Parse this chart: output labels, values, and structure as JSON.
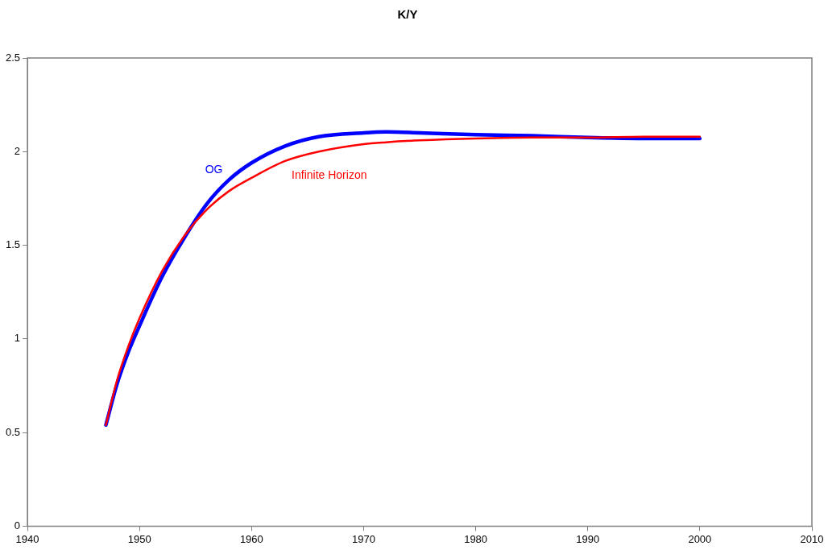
{
  "chart_data": {
    "type": "line",
    "title": "K/Y",
    "xlim": [
      1940,
      2010
    ],
    "xticks": [
      1940,
      1950,
      1960,
      1970,
      1980,
      1990,
      2000,
      2010
    ],
    "ylim": [
      0,
      2.5
    ],
    "yticks": [
      0,
      0.5,
      1,
      1.5,
      2,
      2.5
    ],
    "grid": false,
    "legend": false,
    "marker": "none",
    "line_style": "solid",
    "x": [
      1947,
      1948,
      1949,
      1950,
      1952,
      1954,
      1956,
      1958,
      1960,
      1963,
      1966,
      1970,
      1972,
      1975,
      1980,
      1985,
      1990,
      1995,
      2000
    ],
    "series": [
      {
        "name": "OG",
        "color": "#0000ff",
        "values": [
          0.54,
          0.76,
          0.93,
          1.07,
          1.33,
          1.54,
          1.72,
          1.85,
          1.94,
          2.03,
          2.08,
          2.1,
          2.105,
          2.1,
          2.09,
          2.085,
          2.075,
          2.07,
          2.07
        ]
      },
      {
        "name": "Infinite Horizon",
        "color": "#ff0000",
        "values": [
          0.54,
          0.78,
          0.96,
          1.11,
          1.36,
          1.55,
          1.69,
          1.79,
          1.86,
          1.95,
          2.0,
          2.04,
          2.05,
          2.06,
          2.07,
          2.075,
          2.075,
          2.08,
          2.08
        ]
      }
    ]
  }
}
